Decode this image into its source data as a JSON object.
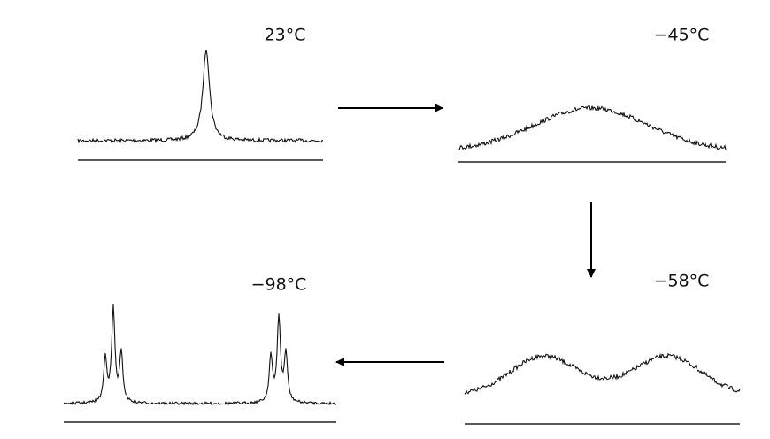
{
  "panels": [
    {
      "label": "23°C"
    },
    {
      "label": "−45°C"
    },
    {
      "label": "−58°C"
    },
    {
      "label": "−98°C"
    }
  ]
}
